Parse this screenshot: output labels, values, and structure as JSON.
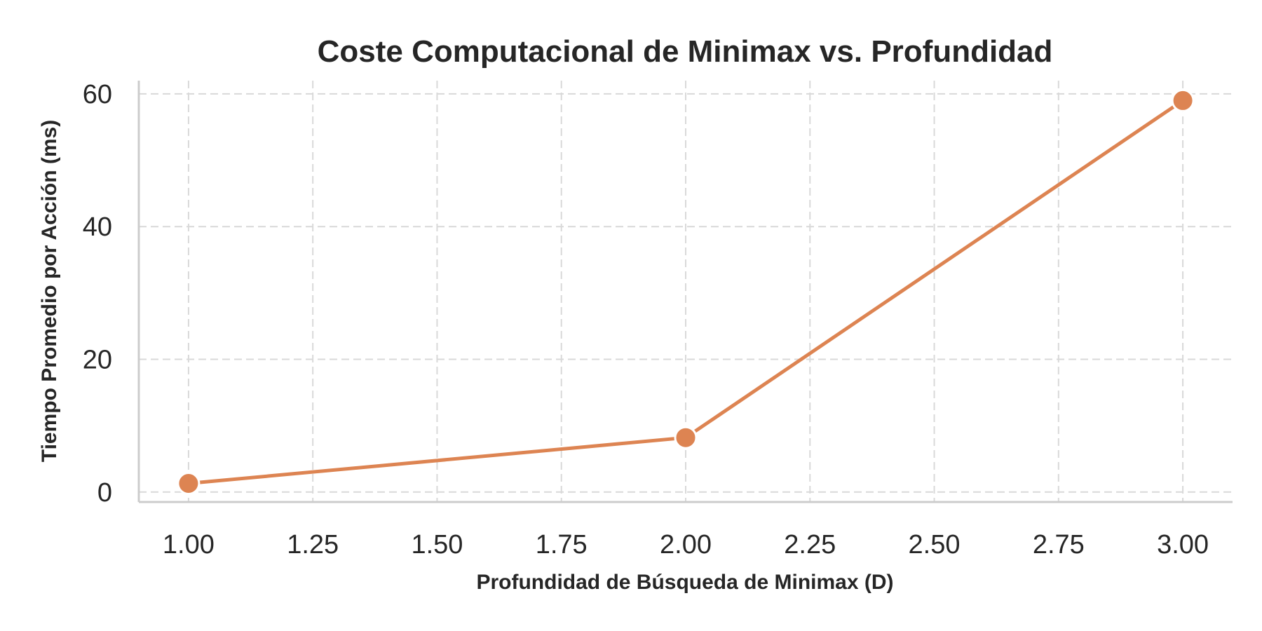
{
  "chart_data": {
    "type": "line",
    "title": "Coste Computacional de Minimax vs. Profundidad",
    "xlabel": "Profundidad de Búsqueda de Minimax (D)",
    "ylabel": "Tiempo Promedio por Acción (ms)",
    "x": [
      1,
      2,
      3
    ],
    "series": [
      {
        "values": [
          1.3,
          8.2,
          59.0
        ],
        "color": "#DD8452"
      }
    ],
    "xlim": [
      0.9,
      3.1
    ],
    "ylim": [
      -1.5,
      62
    ],
    "xticks": [
      1.0,
      1.25,
      1.5,
      1.75,
      2.0,
      2.25,
      2.5,
      2.75,
      3.0
    ],
    "xtick_labels": [
      "1.00",
      "1.25",
      "1.50",
      "1.75",
      "2.00",
      "2.25",
      "2.50",
      "2.75",
      "3.00"
    ],
    "yticks": [
      0,
      20,
      40,
      60
    ],
    "ytick_labels": [
      "0",
      "20",
      "40",
      "60"
    ],
    "grid": true,
    "grid_style": "dashed",
    "markers": "circle"
  }
}
